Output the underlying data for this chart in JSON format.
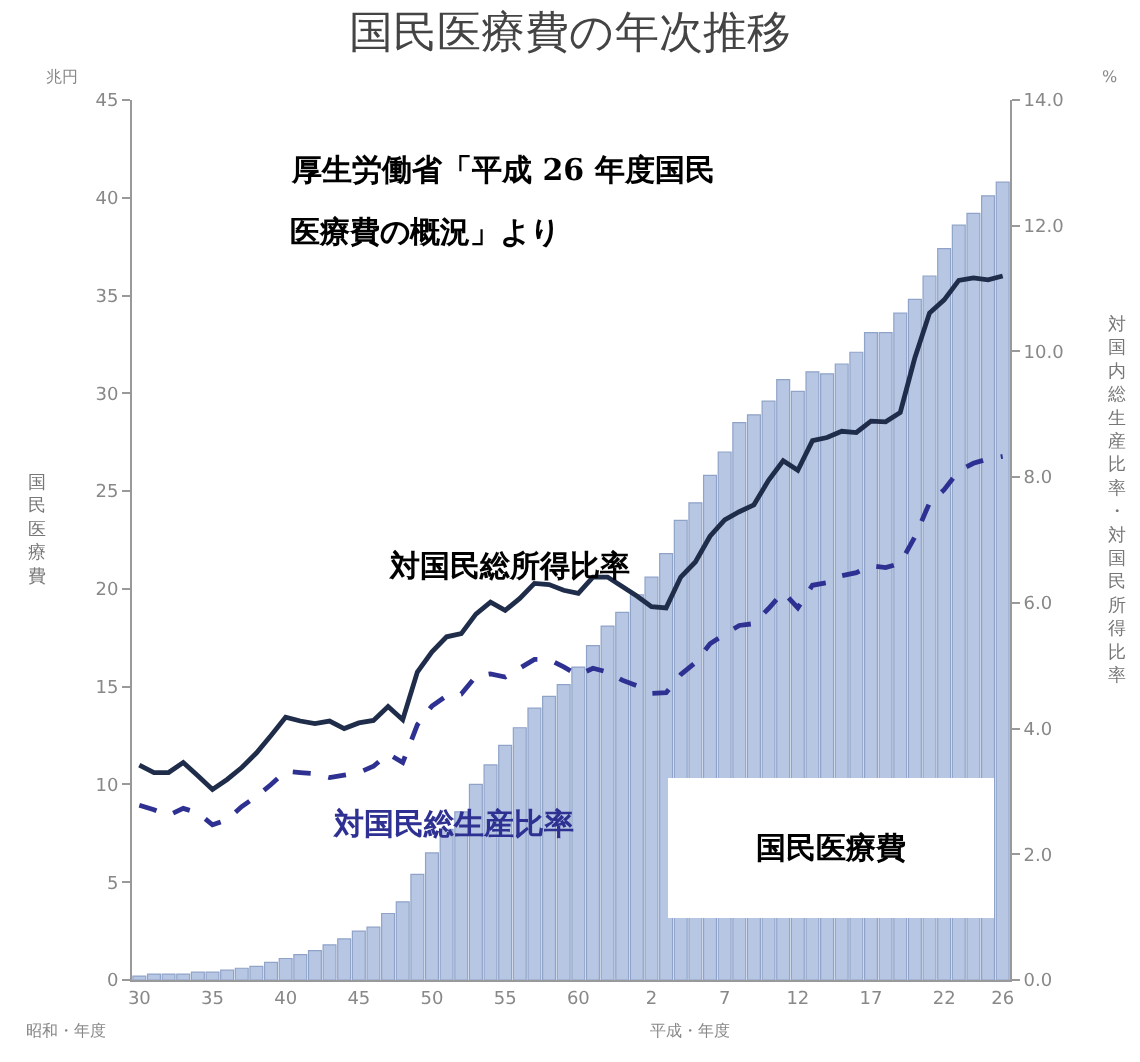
{
  "chart_data": {
    "type": "bar",
    "title": "国民医療費の年次推移",
    "ylabel": "国民医療費",
    "y2label": "対国内総生産比率・対国民所得比率",
    "annotations": [
      "厚生労働省「平成 26 年度国民",
      "医療費の概況」より",
      "兆円",
      "%",
      "昭和・年度",
      "平成・年度"
    ],
    "categories": [
      "30",
      null,
      null,
      null,
      null,
      "35",
      null,
      null,
      null,
      null,
      "40",
      null,
      null,
      null,
      null,
      "45",
      null,
      null,
      null,
      null,
      "50",
      null,
      null,
      null,
      null,
      "55",
      null,
      null,
      null,
      null,
      "60",
      null,
      null,
      null,
      null,
      "2",
      null,
      null,
      null,
      null,
      "7",
      null,
      null,
      null,
      null,
      "12",
      null,
      null,
      null,
      null,
      "17",
      null,
      null,
      null,
      null,
      "22",
      null,
      null,
      null,
      "26"
    ],
    "series": [
      {
        "name": "国民医療費",
        "color": "#b7c7e3",
        "values": [
          0.2,
          0.3,
          0.3,
          0.3,
          0.4,
          0.4,
          0.5,
          0.6,
          0.7,
          0.9,
          1.1,
          1.3,
          1.5,
          1.8,
          2.1,
          2.5,
          2.7,
          3.4,
          4.0,
          5.4,
          6.5,
          7.7,
          8.6,
          10.0,
          11.0,
          12.0,
          12.9,
          13.9,
          14.5,
          15.1,
          16.0,
          17.1,
          18.1,
          18.8,
          19.7,
          20.6,
          21.8,
          23.5,
          24.4,
          25.8,
          27.0,
          28.5,
          28.9,
          29.6,
          30.7,
          30.1,
          31.1,
          31.0,
          31.5,
          32.1,
          33.1,
          33.1,
          34.1,
          34.8,
          36.0,
          37.4,
          38.6,
          39.2,
          40.1,
          40.8
        ]
      },
      {
        "name": "対国民総所得比率",
        "type": "line",
        "axis": "y2",
        "color": "#1f2d4a",
        "line_style": "solid",
        "values": [
          3.42,
          3.3,
          3.3,
          3.46,
          3.25,
          3.03,
          3.19,
          3.38,
          3.61,
          3.89,
          4.18,
          4.12,
          4.08,
          4.12,
          4.0,
          4.09,
          4.13,
          4.35,
          4.14,
          4.9,
          5.22,
          5.46,
          5.51,
          5.82,
          6.01,
          5.88,
          6.07,
          6.31,
          6.29,
          6.2,
          6.15,
          6.41,
          6.41,
          6.26,
          6.11,
          5.94,
          5.92,
          6.41,
          6.65,
          7.06,
          7.32,
          7.45,
          7.56,
          7.95,
          8.26,
          8.11,
          8.58,
          8.63,
          8.73,
          8.71,
          8.89,
          8.88,
          9.03,
          9.9,
          10.61,
          10.82,
          11.13,
          11.17,
          11.14,
          11.2
        ]
      },
      {
        "name": "対国民総生産比率",
        "type": "line",
        "axis": "y2",
        "color": "#2e3192",
        "line_style": "dashed",
        "values": [
          2.78,
          2.71,
          2.62,
          2.73,
          2.66,
          2.47,
          2.55,
          2.76,
          2.92,
          3.11,
          3.32,
          3.3,
          3.28,
          3.22,
          3.26,
          3.3,
          3.4,
          3.6,
          3.46,
          4.06,
          4.36,
          4.52,
          4.55,
          4.83,
          4.87,
          4.82,
          4.96,
          5.1,
          5.1,
          4.98,
          4.85,
          4.96,
          4.9,
          4.77,
          4.68,
          4.56,
          4.57,
          4.86,
          5.05,
          5.35,
          5.5,
          5.64,
          5.67,
          5.91,
          6.17,
          5.92,
          6.28,
          6.32,
          6.43,
          6.48,
          6.59,
          6.56,
          6.63,
          7.05,
          7.59,
          7.8,
          8.1,
          8.22,
          8.29,
          8.33
        ]
      }
    ],
    "ylim": [
      0,
      45
    ],
    "yticks": [
      0,
      5,
      10,
      15,
      20,
      25,
      30,
      35,
      40,
      45
    ],
    "y2lim": [
      0,
      14
    ],
    "y2ticks": [
      {
        "value": 0,
        "label": "0.0"
      },
      {
        "value": 2,
        "label": "2.0"
      },
      {
        "value": 4,
        "label": "4.0"
      },
      {
        "value": 6,
        "label": "6.0"
      },
      {
        "value": 8,
        "label": "8.0"
      },
      {
        "value": 10,
        "label": "10.0"
      },
      {
        "value": 12,
        "label": "12.0"
      },
      {
        "value": 14,
        "label": "14.0"
      }
    ],
    "grid": false,
    "legend": false,
    "marker": "none"
  }
}
